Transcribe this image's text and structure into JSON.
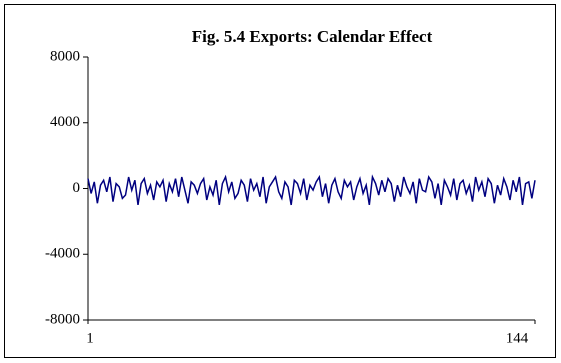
{
  "chart_data": {
    "type": "line",
    "title": "Fig. 5.4 Exports: Calendar Effect",
    "x": [
      1,
      2,
      3,
      4,
      5,
      6,
      7,
      8,
      9,
      10,
      11,
      12,
      13,
      14,
      15,
      16,
      17,
      18,
      19,
      20,
      21,
      22,
      23,
      24,
      25,
      26,
      27,
      28,
      29,
      30,
      31,
      32,
      33,
      34,
      35,
      36,
      37,
      38,
      39,
      40,
      41,
      42,
      43,
      44,
      45,
      46,
      47,
      48,
      49,
      50,
      51,
      52,
      53,
      54,
      55,
      56,
      57,
      58,
      59,
      60,
      61,
      62,
      63,
      64,
      65,
      66,
      67,
      68,
      69,
      70,
      71,
      72,
      73,
      74,
      75,
      76,
      77,
      78,
      79,
      80,
      81,
      82,
      83,
      84,
      85,
      86,
      87,
      88,
      89,
      90,
      91,
      92,
      93,
      94,
      95,
      96,
      97,
      98,
      99,
      100,
      101,
      102,
      103,
      104,
      105,
      106,
      107,
      108,
      109,
      110,
      111,
      112,
      113,
      114,
      115,
      116,
      117,
      118,
      119,
      120,
      121,
      122,
      123,
      124,
      125,
      126,
      127,
      128,
      129,
      130,
      131,
      132,
      133,
      134,
      135,
      136,
      137,
      138,
      139,
      140,
      141,
      142,
      143,
      144
    ],
    "series": [
      {
        "color": "#000080",
        "values": [
          600,
          -300,
          400,
          -900,
          200,
          500,
          -200,
          700,
          -800,
          300,
          100,
          -600,
          -400,
          700,
          -100,
          500,
          -1000,
          300,
          600,
          -300,
          200,
          -700,
          400,
          100,
          500,
          -800,
          300,
          -200,
          600,
          -500,
          700,
          -100,
          -900,
          400,
          200,
          -300,
          300,
          600,
          -700,
          100,
          -400,
          500,
          -1000,
          300,
          700,
          -200,
          400,
          -600,
          -300,
          500,
          200,
          -800,
          600,
          -100,
          300,
          -500,
          700,
          -900,
          100,
          400,
          700,
          -200,
          -600,
          400,
          100,
          -1000,
          500,
          300,
          -300,
          600,
          -700,
          200,
          -100,
          400,
          700,
          -500,
          300,
          -900,
          200,
          600,
          -200,
          -600,
          500,
          100,
          400,
          -700,
          100,
          600,
          -300,
          200,
          -1000,
          700,
          300,
          -400,
          500,
          -200,
          600,
          300,
          -800,
          200,
          -500,
          700,
          100,
          -300,
          400,
          -900,
          600,
          -100,
          -200,
          700,
          400,
          -600,
          300,
          -1000,
          500,
          100,
          -400,
          600,
          -700,
          300,
          500,
          -300,
          200,
          -800,
          700,
          -100,
          400,
          -500,
          600,
          300,
          -900,
          200,
          -400,
          600,
          100,
          -700,
          500,
          -200,
          700,
          -1000,
          300,
          400,
          -600,
          500
        ]
      }
    ],
    "xlim": [
      1,
      144
    ],
    "xticks": [
      1,
      144
    ],
    "ylim": [
      -8000,
      8000
    ],
    "yticks": [
      -8000,
      -4000,
      0,
      4000,
      8000
    ]
  }
}
